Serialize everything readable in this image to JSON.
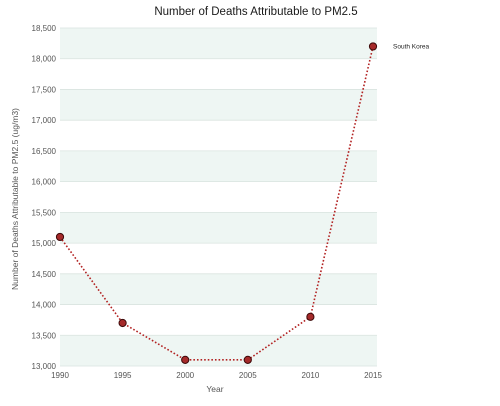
{
  "chart_data": {
    "type": "line",
    "title": "Number of Deaths Attributable to PM2.5",
    "xlabel": "Year",
    "ylabel": "Number of Deaths Attributable to PM2.5 (ug/m3)",
    "x": [
      1990,
      1995,
      2000,
      2005,
      2010,
      2015
    ],
    "xticks": [
      "1990",
      "1995",
      "2000",
      "2005",
      "2010",
      "2015"
    ],
    "yticks": [
      "13,000",
      "13,500",
      "14,000",
      "14,500",
      "15,000",
      "15,500",
      "16,000",
      "16,500",
      "17,000",
      "17,500",
      "18,000",
      "18,500"
    ],
    "ylim": [
      13000,
      18500
    ],
    "xlim": [
      1990,
      2015
    ],
    "series": [
      {
        "name": "South Korea",
        "values": [
          15100,
          13700,
          13100,
          13100,
          13800,
          18200
        ]
      }
    ],
    "grid": true,
    "legend": "series label at end of line (right)",
    "colors": {
      "line": "#b22222",
      "marker_fill": "#a52a2a",
      "marker_stroke": "#3d0a0a",
      "band": "#eef6f3",
      "grid": "#d9e3df"
    }
  }
}
